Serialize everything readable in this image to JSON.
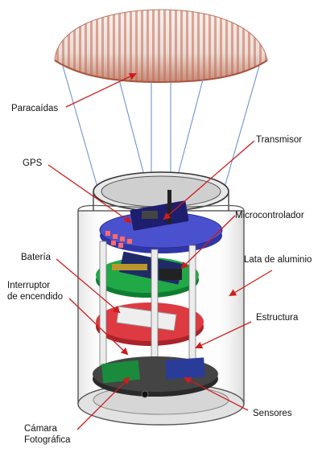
{
  "diagram": {
    "labels": {
      "paracaidas": "Paracaídas",
      "transmisor": "Transmisor",
      "gps": "GPS",
      "microcontrolador": "Microcontrolador",
      "lata": "Lata de aluminio",
      "bateria": "Batería",
      "interruptor": "Interruptor\nde encendido",
      "estructura": "Estructura",
      "sensores": "Sensores",
      "camara": "Cámara\nFotográfica"
    },
    "colors": {
      "arrow": "#d01c1c",
      "parachute_light": "#f1ece8",
      "parachute_dark": "#c97055",
      "board_green": "#1fa544",
      "board_red": "#d8343a",
      "board_blue": "#3f46c8",
      "shroud_line": "#6f95cf"
    }
  }
}
